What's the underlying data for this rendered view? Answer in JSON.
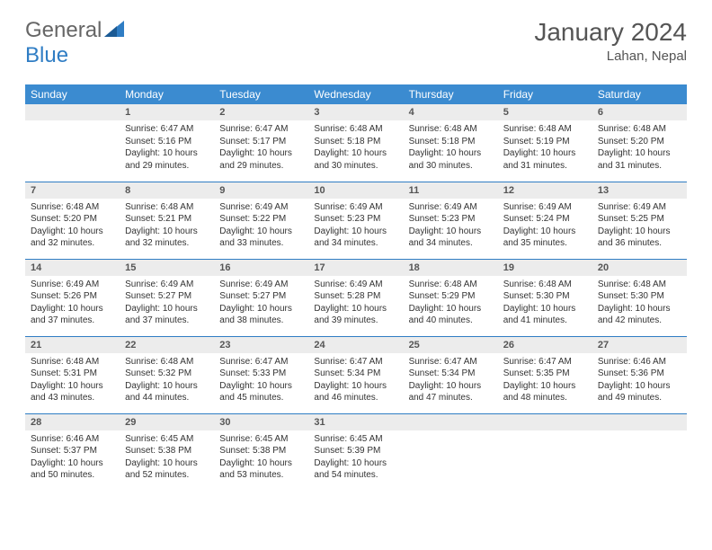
{
  "brand": {
    "part1": "General",
    "part2": "Blue"
  },
  "title": "January 2024",
  "location": "Lahan, Nepal",
  "weekdays": [
    "Sunday",
    "Monday",
    "Tuesday",
    "Wednesday",
    "Thursday",
    "Friday",
    "Saturday"
  ],
  "colors": {
    "header_bg": "#3b8bd0",
    "header_text": "#ffffff",
    "daynum_bg": "#ececec",
    "border": "#2f7dc4",
    "brand_blue": "#2f7dc4",
    "text": "#333333"
  },
  "weeks": [
    [
      {
        "empty": true
      },
      {
        "n": "1",
        "sr": "6:47 AM",
        "ss": "5:16 PM",
        "dl": "10 hours and 29 minutes."
      },
      {
        "n": "2",
        "sr": "6:47 AM",
        "ss": "5:17 PM",
        "dl": "10 hours and 29 minutes."
      },
      {
        "n": "3",
        "sr": "6:48 AM",
        "ss": "5:18 PM",
        "dl": "10 hours and 30 minutes."
      },
      {
        "n": "4",
        "sr": "6:48 AM",
        "ss": "5:18 PM",
        "dl": "10 hours and 30 minutes."
      },
      {
        "n": "5",
        "sr": "6:48 AM",
        "ss": "5:19 PM",
        "dl": "10 hours and 31 minutes."
      },
      {
        "n": "6",
        "sr": "6:48 AM",
        "ss": "5:20 PM",
        "dl": "10 hours and 31 minutes."
      }
    ],
    [
      {
        "n": "7",
        "sr": "6:48 AM",
        "ss": "5:20 PM",
        "dl": "10 hours and 32 minutes."
      },
      {
        "n": "8",
        "sr": "6:48 AM",
        "ss": "5:21 PM",
        "dl": "10 hours and 32 minutes."
      },
      {
        "n": "9",
        "sr": "6:49 AM",
        "ss": "5:22 PM",
        "dl": "10 hours and 33 minutes."
      },
      {
        "n": "10",
        "sr": "6:49 AM",
        "ss": "5:23 PM",
        "dl": "10 hours and 34 minutes."
      },
      {
        "n": "11",
        "sr": "6:49 AM",
        "ss": "5:23 PM",
        "dl": "10 hours and 34 minutes."
      },
      {
        "n": "12",
        "sr": "6:49 AM",
        "ss": "5:24 PM",
        "dl": "10 hours and 35 minutes."
      },
      {
        "n": "13",
        "sr": "6:49 AM",
        "ss": "5:25 PM",
        "dl": "10 hours and 36 minutes."
      }
    ],
    [
      {
        "n": "14",
        "sr": "6:49 AM",
        "ss": "5:26 PM",
        "dl": "10 hours and 37 minutes."
      },
      {
        "n": "15",
        "sr": "6:49 AM",
        "ss": "5:27 PM",
        "dl": "10 hours and 37 minutes."
      },
      {
        "n": "16",
        "sr": "6:49 AM",
        "ss": "5:27 PM",
        "dl": "10 hours and 38 minutes."
      },
      {
        "n": "17",
        "sr": "6:49 AM",
        "ss": "5:28 PM",
        "dl": "10 hours and 39 minutes."
      },
      {
        "n": "18",
        "sr": "6:48 AM",
        "ss": "5:29 PM",
        "dl": "10 hours and 40 minutes."
      },
      {
        "n": "19",
        "sr": "6:48 AM",
        "ss": "5:30 PM",
        "dl": "10 hours and 41 minutes."
      },
      {
        "n": "20",
        "sr": "6:48 AM",
        "ss": "5:30 PM",
        "dl": "10 hours and 42 minutes."
      }
    ],
    [
      {
        "n": "21",
        "sr": "6:48 AM",
        "ss": "5:31 PM",
        "dl": "10 hours and 43 minutes."
      },
      {
        "n": "22",
        "sr": "6:48 AM",
        "ss": "5:32 PM",
        "dl": "10 hours and 44 minutes."
      },
      {
        "n": "23",
        "sr": "6:47 AM",
        "ss": "5:33 PM",
        "dl": "10 hours and 45 minutes."
      },
      {
        "n": "24",
        "sr": "6:47 AM",
        "ss": "5:34 PM",
        "dl": "10 hours and 46 minutes."
      },
      {
        "n": "25",
        "sr": "6:47 AM",
        "ss": "5:34 PM",
        "dl": "10 hours and 47 minutes."
      },
      {
        "n": "26",
        "sr": "6:47 AM",
        "ss": "5:35 PM",
        "dl": "10 hours and 48 minutes."
      },
      {
        "n": "27",
        "sr": "6:46 AM",
        "ss": "5:36 PM",
        "dl": "10 hours and 49 minutes."
      }
    ],
    [
      {
        "n": "28",
        "sr": "6:46 AM",
        "ss": "5:37 PM",
        "dl": "10 hours and 50 minutes."
      },
      {
        "n": "29",
        "sr": "6:45 AM",
        "ss": "5:38 PM",
        "dl": "10 hours and 52 minutes."
      },
      {
        "n": "30",
        "sr": "6:45 AM",
        "ss": "5:38 PM",
        "dl": "10 hours and 53 minutes."
      },
      {
        "n": "31",
        "sr": "6:45 AM",
        "ss": "5:39 PM",
        "dl": "10 hours and 54 minutes."
      },
      {
        "empty": true
      },
      {
        "empty": true
      },
      {
        "empty": true
      }
    ]
  ],
  "labels": {
    "sunrise": "Sunrise:",
    "sunset": "Sunset:",
    "daylight": "Daylight:"
  }
}
